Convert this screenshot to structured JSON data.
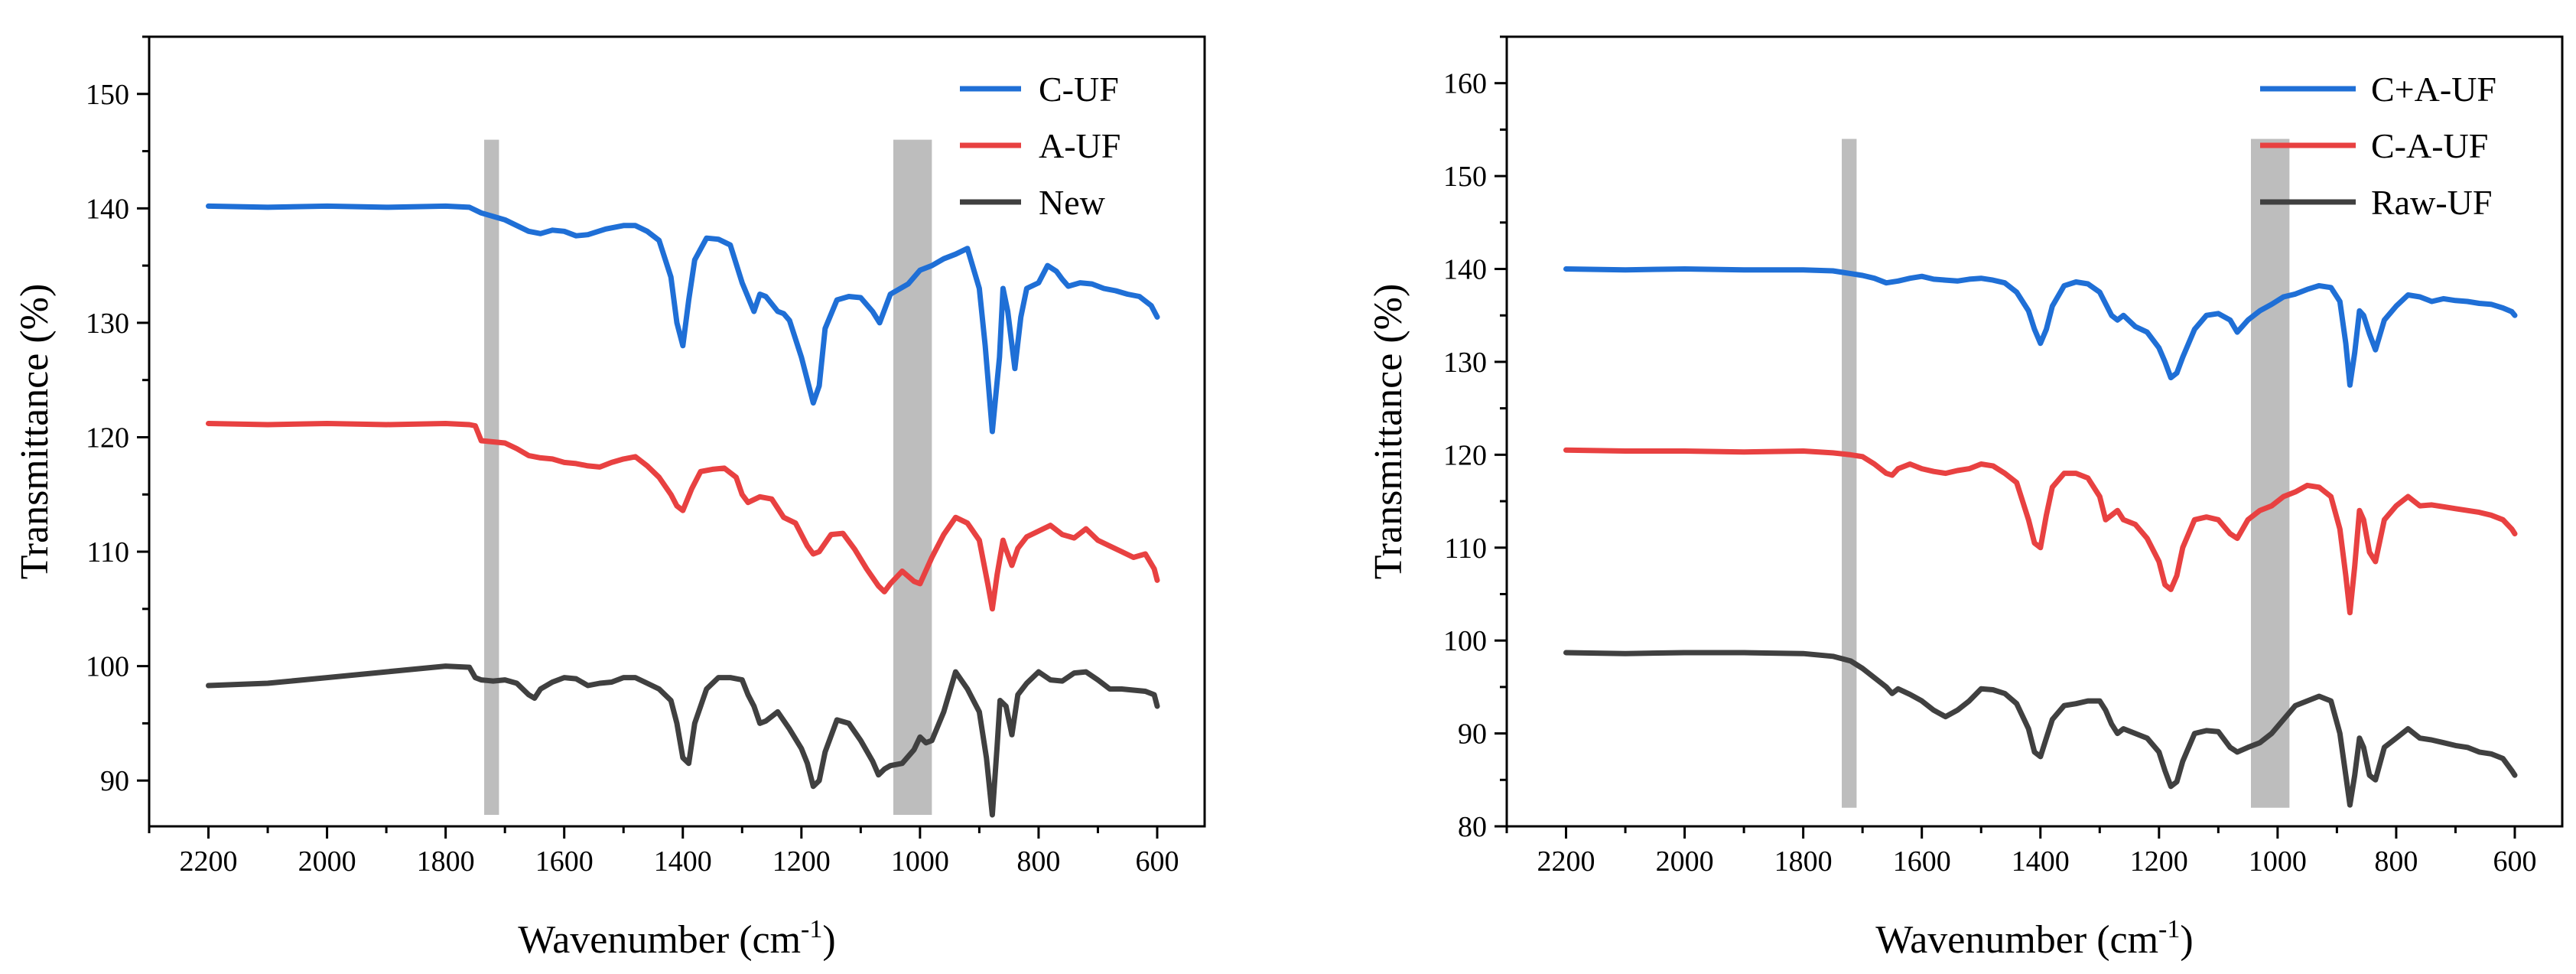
{
  "chart_data": [
    {
      "type": "line",
      "xlabel": "Wavenumber (cm",
      "xlabel_sup": "-1",
      "xlabel_close": ")",
      "ylabel": "Transmittance (%)",
      "xlim": [
        2300,
        520
      ],
      "ylim": [
        86,
        155
      ],
      "x_ticks": [
        2200,
        2000,
        1800,
        1600,
        1400,
        1200,
        1000,
        800,
        600
      ],
      "y_ticks": [
        90,
        100,
        110,
        120,
        130,
        140,
        150
      ],
      "x_tick_labels": [
        "2200",
        "2000",
        "1800",
        "1600",
        "1400",
        "1200",
        "1000",
        "800",
        "600"
      ],
      "y_tick_labels": [
        "90",
        "100",
        "110",
        "120",
        "130",
        "140",
        "150"
      ],
      "highlight_bands": [
        {
          "x0": 1735,
          "x1": 1710,
          "y0": 87,
          "y1": 146
        },
        {
          "x0": 1045,
          "x1": 980,
          "y0": 87,
          "y1": 146
        }
      ],
      "series": [
        {
          "name": "C-UF",
          "color": "#1f6fd6",
          "x": [
            2200,
            2100,
            2000,
            1900,
            1800,
            1760,
            1740,
            1700,
            1660,
            1640,
            1620,
            1600,
            1580,
            1560,
            1530,
            1500,
            1480,
            1460,
            1440,
            1420,
            1410,
            1400,
            1390,
            1380,
            1360,
            1340,
            1320,
            1300,
            1280,
            1270,
            1260,
            1240,
            1230,
            1220,
            1200,
            1180,
            1170,
            1160,
            1140,
            1120,
            1100,
            1080,
            1068,
            1050,
            1020,
            1000,
            980,
            960,
            940,
            920,
            900,
            890,
            878,
            866,
            860,
            852,
            840,
            830,
            820,
            800,
            785,
            770,
            760,
            750,
            730,
            710,
            690,
            670,
            650,
            630,
            610,
            600
          ],
          "y": [
            140.2,
            140.1,
            140.2,
            140.1,
            140.2,
            140.1,
            139.6,
            139.0,
            138.0,
            137.8,
            138.1,
            138.0,
            137.6,
            137.7,
            138.2,
            138.5,
            138.5,
            138.0,
            137.2,
            134.0,
            130.0,
            128.0,
            132.0,
            135.5,
            137.4,
            137.3,
            136.8,
            133.5,
            131.0,
            132.5,
            132.3,
            131.0,
            130.8,
            130.2,
            127.0,
            123.0,
            124.5,
            129.5,
            132.0,
            132.3,
            132.2,
            131.0,
            130.0,
            132.5,
            133.4,
            134.6,
            135.0,
            135.6,
            136.0,
            136.5,
            133.0,
            128.0,
            120.5,
            127.0,
            133.0,
            131.0,
            126.0,
            130.5,
            133.0,
            133.5,
            135.0,
            134.5,
            133.8,
            133.2,
            133.5,
            133.4,
            133.0,
            132.8,
            132.5,
            132.3,
            131.5,
            130.5
          ]
        },
        {
          "name": "A-UF",
          "color": "#e84141",
          "x": [
            2200,
            2100,
            2000,
            1900,
            1800,
            1760,
            1750,
            1740,
            1720,
            1700,
            1680,
            1660,
            1640,
            1620,
            1600,
            1580,
            1560,
            1540,
            1520,
            1500,
            1480,
            1460,
            1440,
            1420,
            1410,
            1400,
            1385,
            1370,
            1350,
            1330,
            1310,
            1300,
            1290,
            1270,
            1250,
            1230,
            1210,
            1190,
            1180,
            1170,
            1150,
            1130,
            1110,
            1090,
            1070,
            1060,
            1050,
            1030,
            1010,
            1000,
            980,
            960,
            940,
            920,
            900,
            885,
            878,
            870,
            860,
            855,
            845,
            835,
            820,
            800,
            780,
            760,
            740,
            720,
            700,
            680,
            660,
            640,
            620,
            605,
            600
          ],
          "y": [
            121.2,
            121.1,
            121.2,
            121.1,
            121.2,
            121.1,
            121.0,
            119.7,
            119.6,
            119.5,
            119.0,
            118.4,
            118.2,
            118.1,
            117.8,
            117.7,
            117.5,
            117.4,
            117.8,
            118.1,
            118.3,
            117.5,
            116.5,
            115.0,
            114.0,
            113.6,
            115.5,
            117.0,
            117.2,
            117.3,
            116.5,
            115.0,
            114.3,
            114.8,
            114.6,
            113.0,
            112.5,
            110.5,
            109.8,
            110.0,
            111.5,
            111.6,
            110.2,
            108.5,
            107.0,
            106.5,
            107.2,
            108.3,
            107.4,
            107.2,
            109.5,
            111.5,
            113.0,
            112.5,
            111.0,
            107.0,
            105.0,
            108.0,
            111.0,
            110.2,
            108.8,
            110.3,
            111.3,
            111.8,
            112.3,
            111.5,
            111.2,
            112.0,
            111.0,
            110.5,
            110.0,
            109.5,
            109.8,
            108.5,
            107.5
          ]
        },
        {
          "name": "New",
          "color": "#404040",
          "x": [
            2200,
            2100,
            2000,
            1900,
            1800,
            1760,
            1750,
            1740,
            1720,
            1700,
            1680,
            1660,
            1650,
            1640,
            1620,
            1600,
            1580,
            1560,
            1540,
            1520,
            1500,
            1480,
            1460,
            1440,
            1420,
            1410,
            1400,
            1390,
            1380,
            1360,
            1340,
            1320,
            1300,
            1290,
            1280,
            1270,
            1260,
            1240,
            1220,
            1200,
            1190,
            1180,
            1170,
            1160,
            1140,
            1120,
            1100,
            1080,
            1070,
            1060,
            1050,
            1030,
            1010,
            1000,
            990,
            980,
            960,
            940,
            920,
            900,
            888,
            878,
            870,
            865,
            855,
            845,
            835,
            820,
            800,
            780,
            760,
            740,
            720,
            700,
            680,
            660,
            640,
            620,
            605,
            600
          ],
          "y": [
            98.3,
            98.5,
            99.0,
            99.5,
            100.0,
            99.9,
            99.0,
            98.8,
            98.7,
            98.8,
            98.5,
            97.5,
            97.2,
            98.0,
            98.6,
            99.0,
            98.9,
            98.3,
            98.5,
            98.6,
            99.0,
            99.0,
            98.5,
            98.0,
            97.0,
            95.0,
            92.0,
            91.5,
            95.0,
            98.0,
            99.0,
            99.0,
            98.8,
            97.5,
            96.5,
            95.0,
            95.2,
            96.0,
            94.5,
            92.8,
            91.5,
            89.5,
            90.0,
            92.5,
            95.3,
            95.0,
            93.5,
            91.7,
            90.5,
            91.0,
            91.3,
            91.5,
            92.7,
            93.8,
            93.3,
            93.5,
            96.0,
            99.5,
            98.0,
            96.0,
            92.0,
            87.0,
            93.0,
            97.0,
            96.5,
            94.0,
            97.5,
            98.5,
            99.5,
            98.8,
            98.7,
            99.4,
            99.5,
            98.8,
            98.0,
            98.0,
            97.9,
            97.8,
            97.5,
            96.5
          ]
        }
      ]
    },
    {
      "type": "line",
      "xlabel": "Wavenumber (cm",
      "xlabel_sup": "-1",
      "xlabel_close": ")",
      "ylabel": "Transmittance (%)",
      "xlim": [
        2300,
        520
      ],
      "ylim": [
        80,
        165
      ],
      "x_ticks": [
        2200,
        2000,
        1800,
        1600,
        1400,
        1200,
        1000,
        800,
        600
      ],
      "y_ticks": [
        80,
        90,
        100,
        110,
        120,
        130,
        140,
        150,
        160
      ],
      "x_tick_labels": [
        "2200",
        "2000",
        "1800",
        "1600",
        "1400",
        "1200",
        "1000",
        "800",
        "600"
      ],
      "y_tick_labels": [
        "80",
        "90",
        "100",
        "110",
        "120",
        "130",
        "140",
        "150",
        "160"
      ],
      "highlight_bands": [
        {
          "x0": 1735,
          "x1": 1710,
          "y0": 82,
          "y1": 154
        },
        {
          "x0": 1045,
          "x1": 980,
          "y0": 82,
          "y1": 154
        }
      ],
      "series": [
        {
          "name": "C+A-UF",
          "color": "#1f6fd6",
          "x": [
            2200,
            2100,
            2000,
            1900,
            1800,
            1750,
            1720,
            1700,
            1680,
            1660,
            1640,
            1620,
            1600,
            1580,
            1560,
            1540,
            1520,
            1500,
            1480,
            1460,
            1440,
            1420,
            1410,
            1400,
            1390,
            1380,
            1360,
            1340,
            1320,
            1300,
            1280,
            1270,
            1260,
            1240,
            1220,
            1200,
            1190,
            1180,
            1170,
            1160,
            1140,
            1120,
            1100,
            1080,
            1068,
            1050,
            1030,
            1010,
            990,
            970,
            950,
            930,
            910,
            895,
            885,
            878,
            870,
            862,
            855,
            845,
            835,
            820,
            800,
            780,
            760,
            740,
            720,
            700,
            680,
            660,
            640,
            620,
            605,
            600
          ],
          "y": [
            140.0,
            139.9,
            140.0,
            139.9,
            139.9,
            139.8,
            139.5,
            139.3,
            139.0,
            138.5,
            138.7,
            139.0,
            139.2,
            138.9,
            138.8,
            138.7,
            138.9,
            139.0,
            138.8,
            138.5,
            137.5,
            135.5,
            133.5,
            132.0,
            133.5,
            136.0,
            138.2,
            138.6,
            138.4,
            137.5,
            135.0,
            134.5,
            135.0,
            133.8,
            133.2,
            131.5,
            130.0,
            128.3,
            128.8,
            130.5,
            133.5,
            135.0,
            135.2,
            134.5,
            133.2,
            134.5,
            135.5,
            136.2,
            137.0,
            137.3,
            137.8,
            138.2,
            138.0,
            136.5,
            132.0,
            127.5,
            131.0,
            135.5,
            135.0,
            133.0,
            131.3,
            134.5,
            136.0,
            137.2,
            137.0,
            136.5,
            136.8,
            136.6,
            136.5,
            136.3,
            136.2,
            135.8,
            135.4,
            135.0
          ]
        },
        {
          "name": "C-A-UF",
          "color": "#e84141",
          "x": [
            2200,
            2100,
            2000,
            1900,
            1800,
            1750,
            1720,
            1700,
            1680,
            1660,
            1650,
            1640,
            1620,
            1600,
            1580,
            1560,
            1540,
            1520,
            1500,
            1480,
            1460,
            1440,
            1420,
            1410,
            1400,
            1390,
            1380,
            1360,
            1340,
            1320,
            1300,
            1290,
            1280,
            1270,
            1260,
            1240,
            1220,
            1200,
            1190,
            1180,
            1170,
            1160,
            1140,
            1120,
            1100,
            1080,
            1068,
            1050,
            1030,
            1010,
            990,
            970,
            950,
            930,
            910,
            895,
            885,
            878,
            870,
            862,
            855,
            845,
            835,
            820,
            800,
            780,
            760,
            740,
            720,
            700,
            680,
            660,
            640,
            620,
            605,
            600
          ],
          "y": [
            120.5,
            120.4,
            120.4,
            120.3,
            120.4,
            120.2,
            120.0,
            119.8,
            119.0,
            118.0,
            117.8,
            118.5,
            119.0,
            118.5,
            118.2,
            118.0,
            118.3,
            118.5,
            119.0,
            118.8,
            118.0,
            117.0,
            113.0,
            110.5,
            110.0,
            113.5,
            116.5,
            118.0,
            118.0,
            117.5,
            115.5,
            113.0,
            113.5,
            114.0,
            113.0,
            112.5,
            111.0,
            108.5,
            106.0,
            105.5,
            107.0,
            110.0,
            113.0,
            113.3,
            113.0,
            111.5,
            111.0,
            113.0,
            114.0,
            114.5,
            115.5,
            116.0,
            116.7,
            116.5,
            115.5,
            112.0,
            107.0,
            103.0,
            108.0,
            114.0,
            113.0,
            109.5,
            108.5,
            113.0,
            114.5,
            115.5,
            114.5,
            114.6,
            114.4,
            114.2,
            114.0,
            113.8,
            113.5,
            113.0,
            112.0,
            111.5
          ]
        },
        {
          "name": "Raw-UF",
          "color": "#404040",
          "x": [
            2200,
            2100,
            2000,
            1900,
            1800,
            1750,
            1720,
            1700,
            1680,
            1660,
            1650,
            1640,
            1620,
            1600,
            1580,
            1560,
            1540,
            1520,
            1500,
            1480,
            1460,
            1440,
            1420,
            1410,
            1400,
            1390,
            1380,
            1360,
            1340,
            1320,
            1300,
            1290,
            1280,
            1270,
            1260,
            1240,
            1220,
            1200,
            1190,
            1180,
            1170,
            1160,
            1140,
            1120,
            1100,
            1080,
            1068,
            1050,
            1030,
            1010,
            990,
            970,
            950,
            930,
            910,
            895,
            885,
            878,
            870,
            862,
            855,
            845,
            835,
            820,
            800,
            780,
            760,
            740,
            720,
            700,
            680,
            660,
            640,
            620,
            605,
            600
          ],
          "y": [
            98.7,
            98.6,
            98.7,
            98.7,
            98.6,
            98.3,
            97.8,
            97.0,
            96.0,
            95.0,
            94.3,
            94.8,
            94.2,
            93.5,
            92.5,
            91.8,
            92.5,
            93.5,
            94.8,
            94.7,
            94.3,
            93.2,
            90.5,
            88.0,
            87.5,
            89.5,
            91.5,
            93.0,
            93.2,
            93.5,
            93.5,
            92.5,
            91.0,
            90.0,
            90.5,
            90.0,
            89.5,
            88.0,
            86.0,
            84.3,
            84.8,
            87.0,
            90.0,
            90.3,
            90.2,
            88.5,
            88.0,
            88.5,
            89.0,
            90.0,
            91.5,
            93.0,
            93.5,
            94.0,
            93.5,
            90.0,
            85.5,
            82.3,
            85.5,
            89.5,
            88.5,
            85.5,
            85.0,
            88.5,
            89.5,
            90.5,
            89.5,
            89.3,
            89.0,
            88.7,
            88.5,
            88.0,
            87.8,
            87.3,
            86.0,
            85.5
          ]
        }
      ]
    }
  ]
}
